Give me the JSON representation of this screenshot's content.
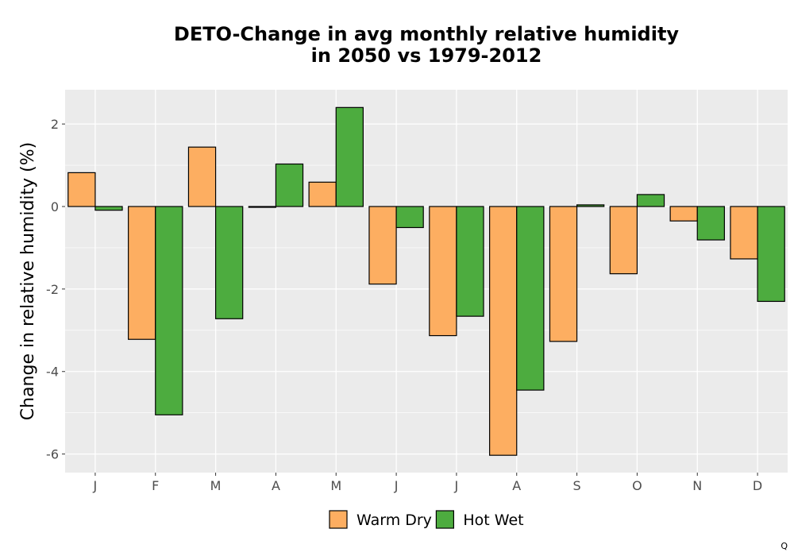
{
  "chart_data": {
    "type": "bar",
    "title_line1": "DETO-Change in avg monthly relative humidity",
    "title_line2": "in 2050 vs 1979-2012",
    "xlabel": "",
    "ylabel": "Change in relative humidity (%)",
    "categories": [
      "J",
      "F",
      "M",
      "A",
      "M",
      "J",
      "J",
      "A",
      "S",
      "O",
      "N",
      "D"
    ],
    "series": [
      {
        "name": "Warm Dry",
        "color": "#FDAE61",
        "values": [
          0.82,
          -3.22,
          1.44,
          -0.02,
          0.59,
          -1.88,
          -3.13,
          -6.03,
          -3.27,
          -1.63,
          -0.35,
          -1.27
        ]
      },
      {
        "name": "Hot Wet",
        "color": "#4DAC3F",
        "values": [
          -0.09,
          -5.05,
          -2.72,
          1.03,
          2.4,
          -0.51,
          -2.66,
          -4.45,
          0.04,
          0.29,
          -0.81,
          -2.3
        ]
      }
    ],
    "ylim": [
      -6.45,
      2.83
    ],
    "yticks": [
      2,
      0,
      -2,
      -4,
      -6
    ],
    "ytick_labels": [
      "2",
      "0",
      "-2",
      "-4",
      "-6"
    ],
    "grid": true,
    "legend_position": "bottom",
    "panel_background": "#EBEBEB"
  },
  "footer": {
    "mark": "Q"
  }
}
